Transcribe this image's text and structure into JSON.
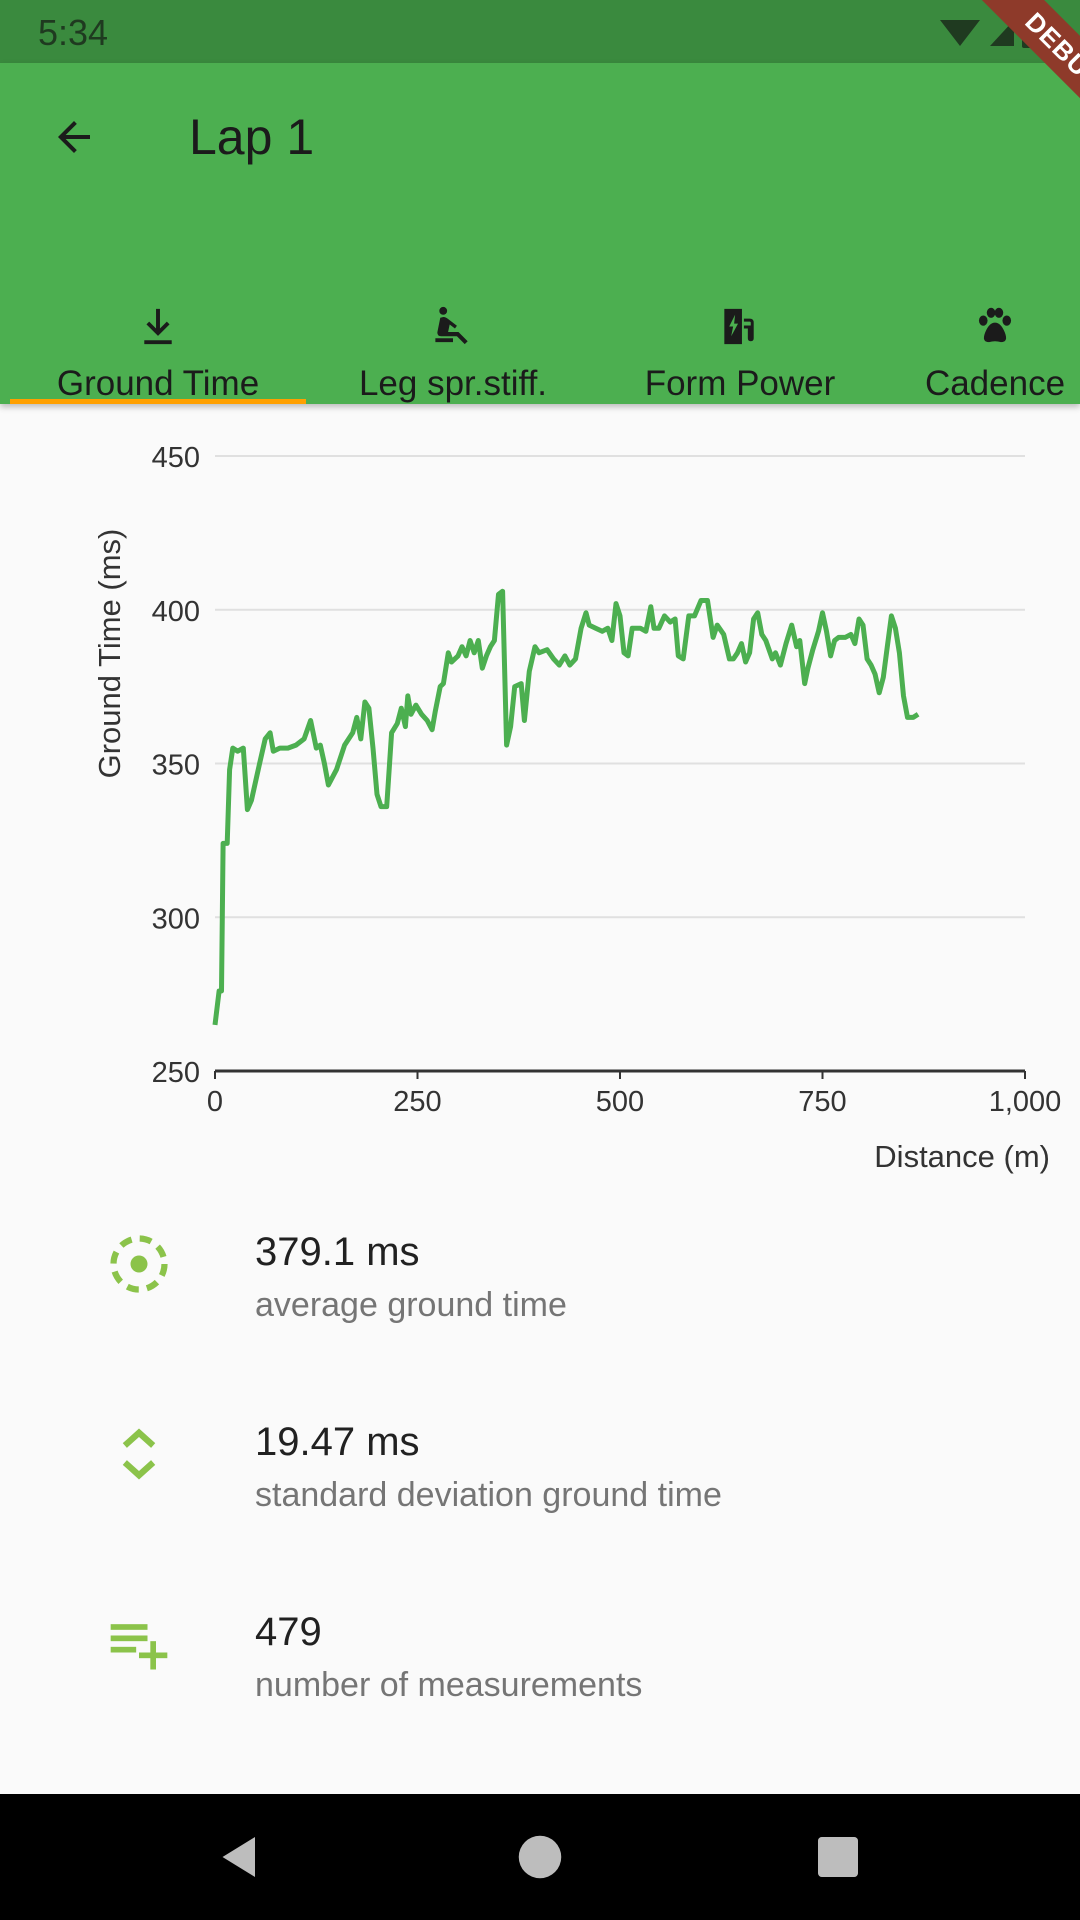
{
  "status": {
    "time": "5:34"
  },
  "app_bar": {
    "title": "Lap 1",
    "debug_label": "DEBUG"
  },
  "tabs": [
    {
      "label": "Ground Time",
      "icon": "download-icon",
      "selected": true
    },
    {
      "label": "Leg spr.stiff.",
      "icon": "seat-recline-icon",
      "selected": false
    },
    {
      "label": "Form Power",
      "icon": "ev-station-icon",
      "selected": false
    },
    {
      "label": "Cadence",
      "icon": "paw-icon",
      "selected": false
    }
  ],
  "colors": {
    "app_bar": "#4caf50",
    "status_bar": "#3a8a3e",
    "indicator": "#ffa000",
    "series": "#4caf50",
    "stat_icon": "#8bc34a"
  },
  "chart_data": {
    "type": "line",
    "xlabel": "Distance (m)",
    "ylabel": "Ground Time (ms)",
    "xlim": [
      0,
      1000
    ],
    "ylim": [
      250,
      450
    ],
    "x_ticks": [
      "0",
      "250",
      "500",
      "750",
      "1,000"
    ],
    "y_ticks": [
      "250",
      "300",
      "350",
      "400",
      "450"
    ],
    "grid": true,
    "series": [
      {
        "values": [
          [
            0,
            265
          ],
          [
            5,
            276
          ],
          [
            8,
            276
          ],
          [
            10,
            324
          ],
          [
            15,
            324
          ],
          [
            18,
            348
          ],
          [
            22,
            355
          ],
          [
            28,
            354
          ],
          [
            35,
            355
          ],
          [
            40,
            335
          ],
          [
            45,
            338
          ],
          [
            55,
            350
          ],
          [
            62,
            358
          ],
          [
            68,
            360
          ],
          [
            72,
            354
          ],
          [
            80,
            355
          ],
          [
            90,
            355
          ],
          [
            100,
            356
          ],
          [
            110,
            358
          ],
          [
            118,
            364
          ],
          [
            125,
            355
          ],
          [
            130,
            356
          ],
          [
            135,
            350
          ],
          [
            140,
            343
          ],
          [
            150,
            348
          ],
          [
            160,
            356
          ],
          [
            170,
            360
          ],
          [
            175,
            365
          ],
          [
            180,
            358
          ],
          [
            185,
            370
          ],
          [
            190,
            368
          ],
          [
            195,
            355
          ],
          [
            200,
            340
          ],
          [
            205,
            336
          ],
          [
            212,
            336
          ],
          [
            218,
            360
          ],
          [
            225,
            363
          ],
          [
            230,
            368
          ],
          [
            235,
            362
          ],
          [
            238,
            372
          ],
          [
            242,
            366
          ],
          [
            248,
            369
          ],
          [
            255,
            366
          ],
          [
            262,
            364
          ],
          [
            268,
            361
          ],
          [
            272,
            367
          ],
          [
            278,
            375
          ],
          [
            282,
            376
          ],
          [
            288,
            386
          ],
          [
            292,
            383
          ],
          [
            296,
            384
          ],
          [
            300,
            385
          ],
          [
            305,
            388
          ],
          [
            310,
            385
          ],
          [
            315,
            390
          ],
          [
            320,
            386
          ],
          [
            325,
            390
          ],
          [
            330,
            381
          ],
          [
            335,
            385
          ],
          [
            340,
            388
          ],
          [
            345,
            390
          ],
          [
            350,
            405
          ],
          [
            355,
            406
          ],
          [
            360,
            356
          ],
          [
            365,
            362
          ],
          [
            370,
            375
          ],
          [
            378,
            376
          ],
          [
            382,
            364
          ],
          [
            388,
            380
          ],
          [
            395,
            388
          ],
          [
            400,
            386
          ],
          [
            410,
            387
          ],
          [
            418,
            384
          ],
          [
            425,
            382
          ],
          [
            432,
            385
          ],
          [
            438,
            382
          ],
          [
            445,
            384
          ],
          [
            452,
            394
          ],
          [
            458,
            399
          ],
          [
            462,
            395
          ],
          [
            470,
            394
          ],
          [
            478,
            393
          ],
          [
            485,
            394
          ],
          [
            490,
            390
          ],
          [
            495,
            402
          ],
          [
            500,
            398
          ],
          [
            505,
            386
          ],
          [
            510,
            385
          ],
          [
            515,
            394
          ],
          [
            525,
            394
          ],
          [
            532,
            393
          ],
          [
            538,
            401
          ],
          [
            542,
            394
          ],
          [
            548,
            394
          ],
          [
            555,
            398
          ],
          [
            562,
            396
          ],
          [
            568,
            397
          ],
          [
            572,
            385
          ],
          [
            578,
            384
          ],
          [
            585,
            398
          ],
          [
            592,
            398
          ],
          [
            600,
            403
          ],
          [
            608,
            403
          ],
          [
            615,
            391
          ],
          [
            620,
            395
          ],
          [
            628,
            392
          ],
          [
            635,
            384
          ],
          [
            640,
            384
          ],
          [
            645,
            386
          ],
          [
            650,
            389
          ],
          [
            655,
            383
          ],
          [
            660,
            386
          ],
          [
            665,
            397
          ],
          [
            670,
            399
          ],
          [
            675,
            392
          ],
          [
            680,
            390
          ],
          [
            688,
            384
          ],
          [
            692,
            386
          ],
          [
            698,
            382
          ],
          [
            705,
            389
          ],
          [
            712,
            395
          ],
          [
            718,
            388
          ],
          [
            722,
            390
          ],
          [
            728,
            376
          ],
          [
            732,
            381
          ],
          [
            738,
            387
          ],
          [
            745,
            393
          ],
          [
            750,
            399
          ],
          [
            755,
            393
          ],
          [
            760,
            385
          ],
          [
            765,
            390
          ],
          [
            770,
            391
          ],
          [
            778,
            391
          ],
          [
            785,
            392
          ],
          [
            790,
            389
          ],
          [
            795,
            397
          ],
          [
            800,
            395
          ],
          [
            805,
            384
          ],
          [
            810,
            382
          ],
          [
            815,
            379
          ],
          [
            820,
            373
          ],
          [
            825,
            378
          ],
          [
            830,
            388
          ],
          [
            835,
            398
          ],
          [
            840,
            394
          ],
          [
            845,
            386
          ],
          [
            850,
            372
          ],
          [
            855,
            365
          ],
          [
            862,
            365
          ],
          [
            868,
            366
          ]
        ]
      }
    ]
  },
  "stats": [
    {
      "value": "379.1 ms",
      "label": "average ground time",
      "icon": "target-dashed-icon"
    },
    {
      "value": "19.47 ms",
      "label": "standard deviation ground time",
      "icon": "unfold-more-icon"
    },
    {
      "value": "479",
      "label": "number of measurements",
      "icon": "playlist-add-icon"
    }
  ]
}
